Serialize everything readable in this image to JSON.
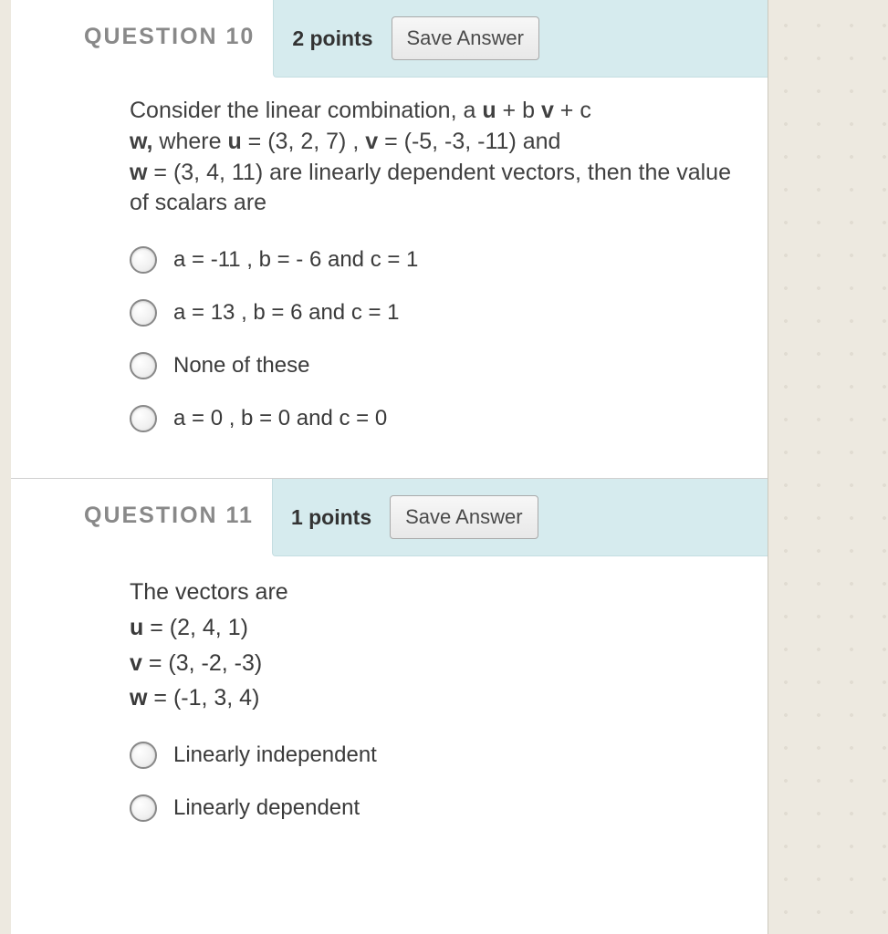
{
  "colors": {
    "page_bg": "#ede9e0",
    "panel_bg": "#ffffff",
    "header_meta_bg": "#d6ebee",
    "header_meta_border": "#c4dde1",
    "title_color": "#898989",
    "text_color": "#3a3a3a",
    "button_border": "#a9a9a9",
    "radio_border": "#888888",
    "divider": "#d0d0d0"
  },
  "typography": {
    "title_fontsize": 25,
    "body_fontsize": 25,
    "option_fontsize": 24,
    "points_fontsize": 23,
    "button_fontsize": 22,
    "title_letter_spacing": 2
  },
  "questions": [
    {
      "id": "q10",
      "title": "QUESTION 10",
      "points_label": "2 points",
      "save_label": "Save Answer",
      "stem_parts": {
        "t0": "Consider  the linear combination, a ",
        "b0": "u",
        "t1": " + b ",
        "b1": "v",
        "t2": " + c ",
        "b2": "w,",
        "t3": "    where  ",
        "b3": "u",
        "t4": " = (3, 2, 7) ,  ",
        "b4": "v",
        "t5": " = (-5, -3, -11) and ",
        "b5": "w",
        "t6": " = (3, 4, 11) are linearly dependent vectors, then the value of scalars are"
      },
      "options": [
        "a = -11 ,  b = - 6 and c = 1",
        "a = 13 ,  b = 6 and c = 1",
        "None of these",
        "a = 0 ,  b = 0 and c = 0"
      ]
    },
    {
      "id": "q11",
      "title": "QUESTION 11",
      "points_label": "1 points",
      "save_label": "Save Answer",
      "intro": "The vectors are",
      "vectors": {
        "u_label": "u",
        "u_val": " = (2, 4, 1)",
        "v_label": "v",
        "v_val": " = (3, -2, -3)",
        "w_label": "w",
        "w_val": " = (-1, 3, 4)"
      },
      "options": [
        "Linearly independent",
        "Linearly dependent"
      ]
    }
  ]
}
